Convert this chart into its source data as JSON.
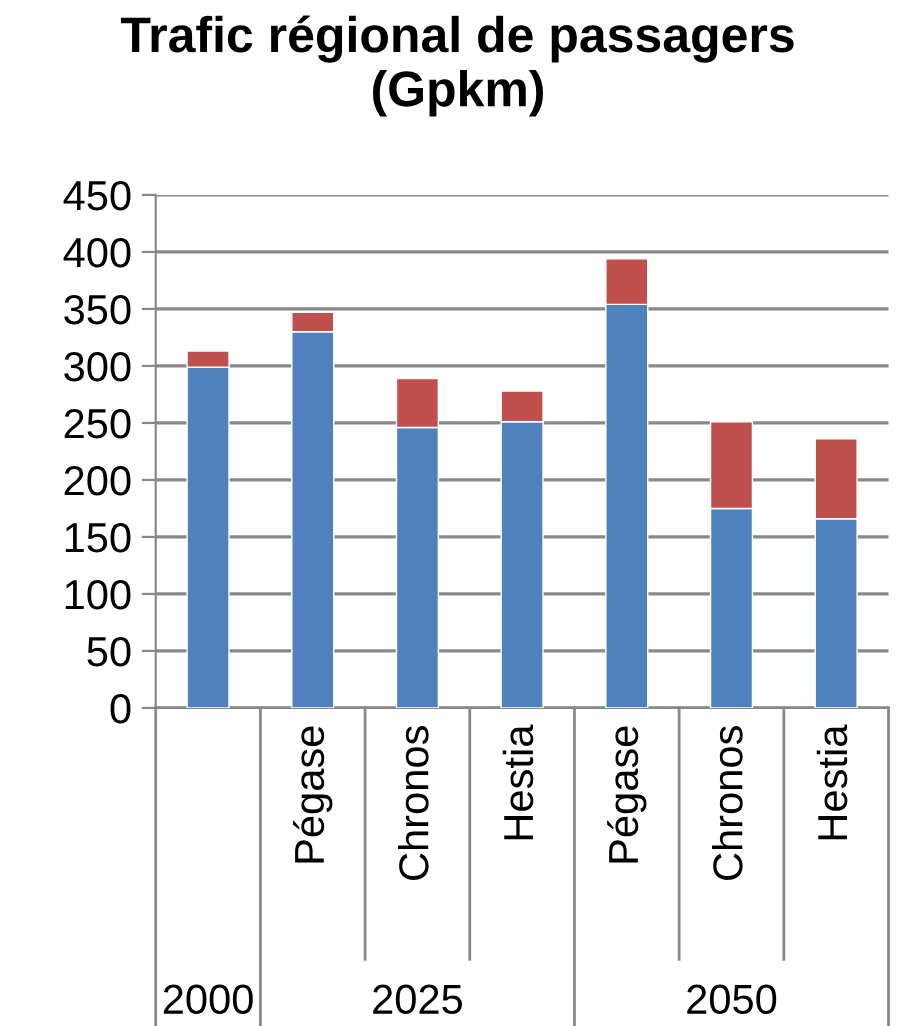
{
  "chart_data": {
    "type": "bar",
    "title": "Trafic régional de passagers\n(Gpkm)",
    "stacked": true,
    "categories": [
      null,
      "Pégase",
      "Chronos",
      "Hestia",
      "Pégase",
      "Chronos",
      "Hestia"
    ],
    "series": [
      {
        "color": "#4f81bd",
        "values": [
          299,
          330,
          246,
          251,
          354,
          175,
          166
        ]
      },
      {
        "color": "#c0504d",
        "values": [
          14,
          17,
          43,
          27,
          40,
          76,
          70
        ]
      }
    ],
    "annotations": [
      "2000",
      "2025",
      "2050"
    ],
    "ylim": [
      0,
      450
    ],
    "yticks": [
      0,
      50,
      100,
      150,
      200,
      250,
      300,
      350,
      400,
      450
    ],
    "grid": "y"
  }
}
